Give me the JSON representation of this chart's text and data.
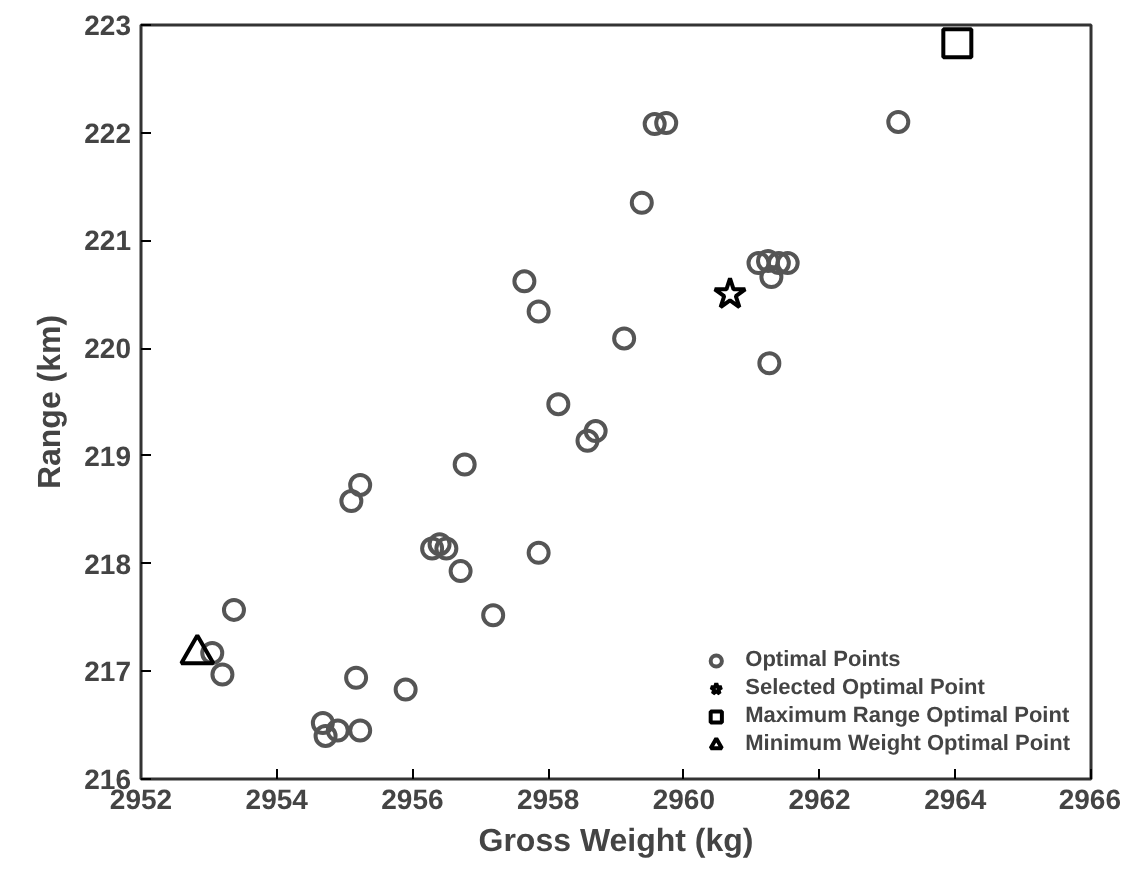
{
  "chart_data": {
    "type": "scatter",
    "xlabel": "Gross Weight (kg)",
    "ylabel": "Range (km)",
    "xlim": [
      2952,
      2966
    ],
    "ylim": [
      216,
      223
    ],
    "xticks": [
      2952,
      2954,
      2956,
      2958,
      2960,
      2962,
      2964,
      2966
    ],
    "yticks": [
      216,
      217,
      218,
      219,
      220,
      221,
      222,
      223
    ],
    "grid": false,
    "legend": "bottom right",
    "series": [
      {
        "name": "Optimal Points",
        "color": "#555555",
        "marker": "circle",
        "x": [
          2953.05,
          2953.2,
          2953.37,
          2954.68,
          2954.72,
          2954.9,
          2955.23,
          2955.17,
          2955.1,
          2955.23,
          2955.9,
          2956.29,
          2956.4,
          2956.5,
          2956.71,
          2956.77,
          2957.19,
          2957.86,
          2958.15,
          2958.58,
          2958.7,
          2957.65,
          2957.86,
          2959.57,
          2959.74,
          2963.16,
          2959.38,
          2961.1,
          2961.24,
          2961.4,
          2961.53,
          2961.29,
          2959.12,
          2961.26
        ],
        "values": [
          217.17,
          216.97,
          217.57,
          216.52,
          216.4,
          216.45,
          216.45,
          216.94,
          218.58,
          218.73,
          216.83,
          218.14,
          218.18,
          218.14,
          217.93,
          218.92,
          217.52,
          218.1,
          219.48,
          219.14,
          219.23,
          220.62,
          220.34,
          222.08,
          222.09,
          222.1,
          221.35,
          220.79,
          220.81,
          220.79,
          220.79,
          220.66,
          220.09,
          219.86
        ]
      },
      {
        "name": "Selected Optimal Point",
        "color": "#000000",
        "marker": "star",
        "x": [
          2960.68
        ],
        "values": [
          220.5
        ]
      },
      {
        "name": "Maximum Range Optimal Point",
        "color": "#000000",
        "marker": "square",
        "x": [
          2964.03
        ],
        "values": [
          222.83
        ]
      },
      {
        "name": "Minimum Weight Optimal Point",
        "color": "#000000",
        "marker": "triangle",
        "x": [
          2952.83
        ],
        "values": [
          217.16
        ]
      }
    ]
  }
}
